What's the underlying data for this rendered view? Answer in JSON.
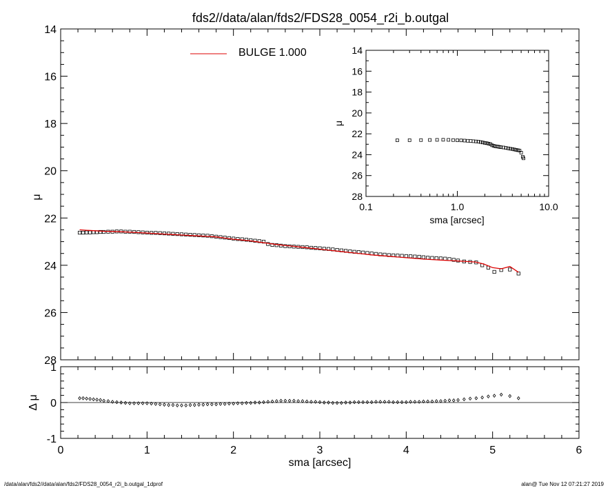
{
  "title": "fds2//data/alan/fds2/FDS28_0054_r2i_b.outgal",
  "footer_left": "/data/alan/fds2//data/alan/fds2/FDS28_0054_r2i_b.outgal_1dprof",
  "footer_right": "alan@  Tue Nov 12 07:21:27 2019",
  "colors": {
    "model": "#dd0000",
    "data": "#000000",
    "axes": "#000000"
  },
  "chart_data": [
    {
      "type": "line",
      "panel": "main",
      "xlabel": "",
      "ylabel": "μ",
      "xlim": [
        0,
        6
      ],
      "ylim": [
        28,
        14
      ],
      "y_inverted": true,
      "yticks": [
        14,
        16,
        18,
        20,
        22,
        24,
        26,
        28
      ],
      "legend": {
        "label": "BULGE  1.000",
        "placement": "top-center"
      },
      "series": [
        {
          "name": "BULGE  1.000",
          "style": "line",
          "x": [
            0.22,
            0.3,
            0.4,
            0.5,
            0.6,
            0.7,
            0.8,
            0.9,
            1.0,
            1.1,
            1.2,
            1.3,
            1.4,
            1.5,
            1.6,
            1.7,
            1.8,
            1.9,
            2.0,
            2.1,
            2.2,
            2.3,
            2.4,
            2.5,
            2.6,
            2.7,
            2.8,
            2.9,
            3.0,
            3.1,
            3.2,
            3.3,
            3.4,
            3.5,
            3.6,
            3.7,
            3.8,
            3.9,
            4.0,
            4.1,
            4.2,
            4.3,
            4.4,
            4.5,
            4.6,
            4.7,
            4.8,
            4.9,
            5.0,
            5.1,
            5.2,
            5.3
          ],
          "y": [
            22.5,
            22.52,
            22.54,
            22.56,
            22.57,
            22.58,
            22.6,
            22.62,
            22.64,
            22.66,
            22.68,
            22.7,
            22.72,
            22.74,
            22.76,
            22.78,
            22.8,
            22.85,
            22.9,
            22.93,
            22.97,
            23.02,
            23.07,
            23.12,
            23.16,
            23.2,
            23.24,
            23.28,
            23.32,
            23.36,
            23.4,
            23.44,
            23.48,
            23.52,
            23.56,
            23.59,
            23.62,
            23.65,
            23.68,
            23.71,
            23.74,
            23.76,
            23.78,
            23.8,
            23.82,
            23.84,
            23.86,
            23.95,
            24.1,
            24.15,
            24.05,
            24.3
          ]
        },
        {
          "name": "",
          "style": "markers",
          "x": [
            0.22,
            0.26,
            0.3,
            0.34,
            0.38,
            0.42,
            0.46,
            0.5,
            0.55,
            0.6,
            0.65,
            0.7,
            0.75,
            0.8,
            0.85,
            0.9,
            0.95,
            1.0,
            1.05,
            1.1,
            1.15,
            1.2,
            1.25,
            1.3,
            1.35,
            1.4,
            1.45,
            1.5,
            1.55,
            1.6,
            1.65,
            1.7,
            1.75,
            1.8,
            1.85,
            1.9,
            1.95,
            2.0,
            2.05,
            2.1,
            2.15,
            2.2,
            2.25,
            2.3,
            2.35,
            2.4,
            2.45,
            2.5,
            2.55,
            2.6,
            2.65,
            2.7,
            2.75,
            2.8,
            2.85,
            2.9,
            2.95,
            3.0,
            3.05,
            3.1,
            3.15,
            3.2,
            3.25,
            3.3,
            3.35,
            3.4,
            3.45,
            3.5,
            3.55,
            3.6,
            3.65,
            3.7,
            3.75,
            3.8,
            3.85,
            3.9,
            3.95,
            4.0,
            4.05,
            4.1,
            4.15,
            4.2,
            4.25,
            4.3,
            4.35,
            4.4,
            4.45,
            4.5,
            4.55,
            4.6,
            4.67,
            4.74,
            4.81,
            4.88,
            4.95,
            5.02,
            5.1,
            5.2,
            5.3
          ],
          "y": [
            22.62,
            22.62,
            22.61,
            22.61,
            22.6,
            22.6,
            22.59,
            22.59,
            22.58,
            22.58,
            22.57,
            22.57,
            22.58,
            22.58,
            22.59,
            22.6,
            22.61,
            22.62,
            22.63,
            22.63,
            22.64,
            22.65,
            22.66,
            22.67,
            22.68,
            22.69,
            22.7,
            22.71,
            22.72,
            22.73,
            22.74,
            22.75,
            22.77,
            22.79,
            22.81,
            22.83,
            22.85,
            22.87,
            22.89,
            22.9,
            22.92,
            22.94,
            22.96,
            22.98,
            23.0,
            23.1,
            23.14,
            23.15,
            23.17,
            23.19,
            23.2,
            23.21,
            23.22,
            23.23,
            23.24,
            23.26,
            23.27,
            23.28,
            23.3,
            23.31,
            23.33,
            23.35,
            23.37,
            23.39,
            23.41,
            23.43,
            23.44,
            23.46,
            23.48,
            23.5,
            23.52,
            23.54,
            23.55,
            23.57,
            23.58,
            23.59,
            23.6,
            23.61,
            23.62,
            23.63,
            23.64,
            23.66,
            23.68,
            23.69,
            23.7,
            23.71,
            23.72,
            23.74,
            23.77,
            23.8,
            23.84,
            23.86,
            23.88,
            24.0,
            24.1,
            24.28,
            24.2,
            24.18,
            24.35
          ]
        }
      ]
    },
    {
      "type": "scatter",
      "panel": "residual",
      "xlabel": "sma [arcsec]",
      "ylabel": "Δ μ",
      "xlim": [
        0,
        6
      ],
      "ylim": [
        -1,
        1
      ],
      "xticks": [
        0,
        1,
        2,
        3,
        4,
        5,
        6
      ],
      "yticks": [
        -1,
        0,
        1
      ],
      "zero_line": true,
      "series": [
        {
          "name": "",
          "x": [
            0.22,
            0.26,
            0.3,
            0.34,
            0.38,
            0.42,
            0.46,
            0.5,
            0.55,
            0.6,
            0.65,
            0.7,
            0.75,
            0.8,
            0.85,
            0.9,
            0.95,
            1.0,
            1.05,
            1.1,
            1.15,
            1.2,
            1.25,
            1.3,
            1.35,
            1.4,
            1.45,
            1.5,
            1.55,
            1.6,
            1.65,
            1.7,
            1.75,
            1.8,
            1.85,
            1.9,
            1.95,
            2.0,
            2.05,
            2.1,
            2.15,
            2.2,
            2.25,
            2.3,
            2.35,
            2.4,
            2.45,
            2.5,
            2.55,
            2.6,
            2.65,
            2.7,
            2.75,
            2.8,
            2.85,
            2.9,
            2.95,
            3.0,
            3.05,
            3.1,
            3.15,
            3.2,
            3.25,
            3.3,
            3.35,
            3.4,
            3.45,
            3.5,
            3.55,
            3.6,
            3.65,
            3.7,
            3.75,
            3.8,
            3.85,
            3.9,
            3.95,
            4.0,
            4.05,
            4.1,
            4.15,
            4.2,
            4.25,
            4.3,
            4.35,
            4.4,
            4.45,
            4.5,
            4.55,
            4.6,
            4.67,
            4.74,
            4.81,
            4.88,
            4.95,
            5.02,
            5.1,
            5.2,
            5.3
          ],
          "y": [
            0.12,
            0.12,
            0.11,
            0.1,
            0.09,
            0.08,
            0.07,
            0.05,
            0.04,
            0.02,
            0.01,
            0.0,
            -0.01,
            -0.02,
            -0.02,
            -0.02,
            -0.02,
            -0.02,
            -0.03,
            -0.04,
            -0.05,
            -0.06,
            -0.07,
            -0.07,
            -0.08,
            -0.08,
            -0.08,
            -0.07,
            -0.07,
            -0.06,
            -0.06,
            -0.05,
            -0.05,
            -0.05,
            -0.04,
            -0.04,
            -0.03,
            -0.03,
            -0.02,
            -0.02,
            -0.01,
            -0.01,
            0.0,
            0.0,
            0.01,
            0.02,
            0.03,
            0.04,
            0.05,
            0.05,
            0.05,
            0.05,
            0.04,
            0.04,
            0.03,
            0.02,
            0.02,
            0.01,
            0.0,
            0.0,
            -0.01,
            -0.01,
            -0.01,
            0.0,
            0.0,
            0.01,
            0.01,
            0.01,
            0.01,
            0.01,
            0.02,
            0.02,
            0.02,
            0.02,
            0.01,
            0.01,
            0.01,
            0.01,
            0.02,
            0.02,
            0.02,
            0.03,
            0.03,
            0.03,
            0.04,
            0.04,
            0.05,
            0.06,
            0.06,
            0.07,
            0.09,
            0.11,
            0.12,
            0.14,
            0.17,
            0.19,
            0.22,
            0.18,
            0.12
          ]
        }
      ]
    },
    {
      "type": "scatter",
      "panel": "inset",
      "xlabel": "sma [arcsec]",
      "ylabel": "μ",
      "x_scale": "log",
      "xlim": [
        0.1,
        10.0
      ],
      "ylim": [
        28,
        14
      ],
      "y_inverted": true,
      "xticks": [
        0.1,
        1.0,
        10.0
      ],
      "xtick_labels": [
        "0.1",
        "1.0",
        "10.0"
      ],
      "yticks": [
        14,
        16,
        18,
        20,
        22,
        24,
        26,
        28
      ],
      "series": [
        {
          "name": "",
          "x": [
            0.22,
            0.3,
            0.4,
            0.5,
            0.6,
            0.7,
            0.8,
            0.9,
            1.0,
            1.1,
            1.2,
            1.3,
            1.4,
            1.5,
            1.6,
            1.7,
            1.8,
            1.9,
            2.0,
            2.1,
            2.2,
            2.3,
            2.4,
            2.5,
            2.6,
            2.7,
            2.8,
            2.9,
            3.0,
            3.2,
            3.4,
            3.6,
            3.8,
            4.0,
            4.2,
            4.4,
            4.6,
            4.8,
            5.0,
            5.2,
            5.3
          ],
          "y": [
            22.62,
            22.61,
            22.6,
            22.59,
            22.58,
            22.57,
            22.58,
            22.6,
            22.62,
            22.63,
            22.65,
            22.67,
            22.69,
            22.71,
            22.73,
            22.75,
            22.79,
            22.83,
            22.87,
            22.9,
            22.94,
            22.98,
            23.1,
            23.15,
            23.19,
            23.21,
            23.23,
            23.26,
            23.28,
            23.31,
            23.35,
            23.39,
            23.43,
            23.46,
            23.5,
            23.54,
            23.57,
            23.6,
            23.8,
            24.2,
            24.35
          ]
        }
      ]
    }
  ]
}
